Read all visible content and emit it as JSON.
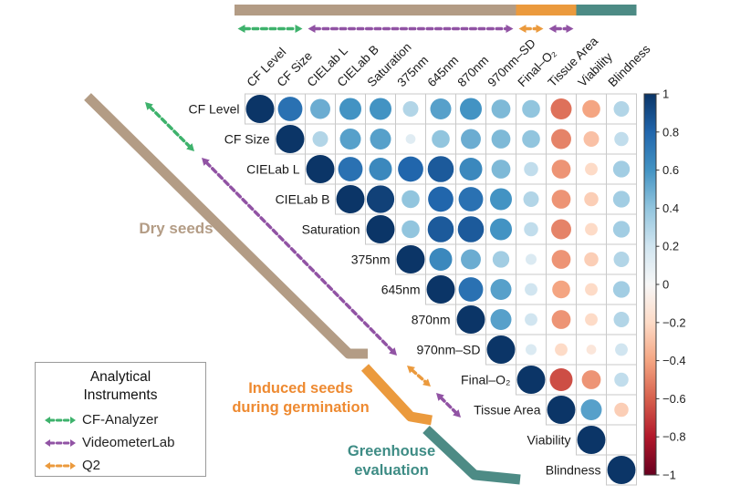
{
  "chart_data": {
    "type": "heatmap",
    "subtype": "correlation-matrix-upper-triangle",
    "title": "",
    "variables": [
      "CF Level",
      "CF Size",
      "CIELab L",
      "CIELab B",
      "Saturation",
      "375nm",
      "645nm",
      "870nm",
      "970nm–SD",
      "Final–O₂",
      "Tissue Area",
      "Viability",
      "Blindness"
    ],
    "upper_triangle": [
      [
        1,
        0.75,
        0.5,
        0.6,
        0.6,
        0.3,
        0.55,
        0.6,
        0.45,
        0.4,
        -0.55,
        -0.4,
        0.3
      ],
      [
        1,
        0.3,
        0.55,
        0.55,
        0.12,
        0.4,
        0.5,
        0.45,
        0.4,
        -0.5,
        -0.3,
        0.25
      ],
      [
        1,
        0.75,
        0.65,
        0.8,
        0.85,
        0.65,
        0.45,
        0.25,
        -0.45,
        -0.2,
        0.35
      ],
      [
        1,
        0.95,
        0.4,
        0.8,
        0.75,
        0.6,
        0.3,
        -0.45,
        -0.25,
        0.35
      ],
      [
        1,
        0.4,
        0.85,
        0.85,
        0.6,
        0.25,
        -0.5,
        -0.2,
        0.35
      ],
      [
        1,
        0.65,
        0.5,
        0.35,
        0.15,
        -0.45,
        -0.25,
        0.3
      ],
      [
        1,
        0.75,
        0.55,
        0.2,
        -0.4,
        -0.2,
        0.35
      ],
      [
        1,
        0.55,
        0.2,
        -0.45,
        -0.2,
        0.3
      ],
      [
        1,
        0.15,
        -0.2,
        -0.12,
        0.2
      ],
      [
        1,
        -0.65,
        -0.45,
        0.25
      ],
      [
        1,
        0.55,
        -0.25
      ],
      [
        1,
        0
      ],
      [
        1
      ]
    ],
    "value_range": [
      -1,
      1
    ],
    "grid": true,
    "colorbar": {
      "position": "right",
      "ticks": [
        {
          "v": 1,
          "label": "1"
        },
        {
          "v": 0.8,
          "label": "0.8"
        },
        {
          "v": 0.6,
          "label": "0.6"
        },
        {
          "v": 0.4,
          "label": "0.4"
        },
        {
          "v": 0.2,
          "label": "0.2"
        },
        {
          "v": 0,
          "label": "0"
        },
        {
          "v": -0.2,
          "label": "−0.2"
        },
        {
          "v": -0.4,
          "label": "−0.4"
        },
        {
          "v": -0.6,
          "label": "−0.6"
        },
        {
          "v": -0.8,
          "label": "−0.8"
        },
        {
          "v": -1,
          "label": "−1"
        }
      ],
      "palette": [
        {
          "v": -1,
          "c": "#67001f"
        },
        {
          "v": -0.8,
          "c": "#b2182b"
        },
        {
          "v": -0.6,
          "c": "#d6604d"
        },
        {
          "v": -0.4,
          "c": "#f4a582"
        },
        {
          "v": -0.2,
          "c": "#fddbc7"
        },
        {
          "v": 0,
          "c": "#f7f7f7"
        },
        {
          "v": 0.2,
          "c": "#d1e5f0"
        },
        {
          "v": 0.4,
          "c": "#92c5de"
        },
        {
          "v": 0.6,
          "c": "#4393c3"
        },
        {
          "v": 0.8,
          "c": "#2166ac"
        },
        {
          "v": 1,
          "c": "#0b3567"
        }
      ]
    },
    "stage_bars": [
      {
        "label": "Dry seeds",
        "cols": [
          1,
          9
        ],
        "color": "#b39c85"
      },
      {
        "label": "Induced seeds during germination",
        "cols": [
          10,
          11
        ],
        "color": "#eb9a3d"
      },
      {
        "label": "Greenhouse evaluation",
        "cols": [
          12,
          13
        ],
        "color": "#4d8b85"
      }
    ],
    "instrument_spans": [
      {
        "label": "CF-Analyzer",
        "cols": [
          1,
          2
        ],
        "color": "#3eb26c"
      },
      {
        "label": "VideometerLab",
        "cols": [
          3,
          9
        ],
        "color": "#9153a4"
      },
      {
        "label": "Q2",
        "cols": [
          10,
          10
        ],
        "color": "#eb9a3d"
      },
      {
        "label": "VideometerLab",
        "cols": [
          11,
          11
        ],
        "color": "#9153a4"
      }
    ]
  },
  "annotations": {
    "dry": "Dry seeds",
    "induced_line1": "Induced seeds",
    "induced_line2": "during germination",
    "greenhouse_line1": "Greenhouse",
    "greenhouse_line2": "evaluation"
  },
  "legend": {
    "title_line1": "Analytical",
    "title_line2": "Instruments",
    "items": [
      {
        "label": "CF-Analyzer",
        "color": "#3eb26c"
      },
      {
        "label": "VideometerLab",
        "color": "#9153a4"
      },
      {
        "label": "Q2",
        "color": "#eb9a3d"
      }
    ]
  }
}
